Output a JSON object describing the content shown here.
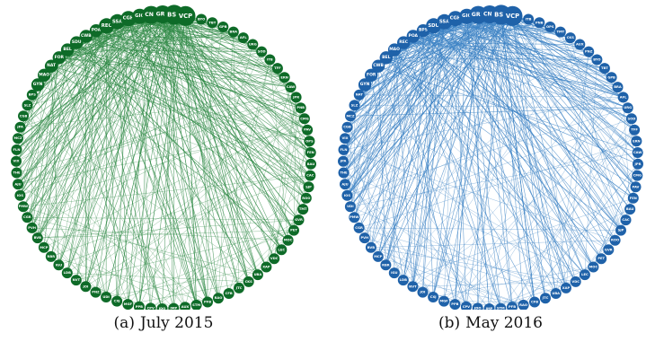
{
  "figure": {
    "panels": [
      {
        "id": "a",
        "tag": "(a)",
        "caption": "July 2015",
        "colors": {
          "node": "#0e6b28",
          "edge": "#2f8a45"
        },
        "labels": [
          "VCP",
          "BSB",
          "GRU",
          "CNF",
          "GIG",
          "CGH",
          "SSA",
          "REC",
          "POA",
          "CWB",
          "SDU",
          "BEL",
          "FOR",
          "NAT",
          "MAO",
          "GYN",
          "BPS",
          "SLZ",
          "CGB",
          "JPA",
          "MCZ",
          "FLN",
          "VIX",
          "THE",
          "AJU",
          "IOS",
          "PMW",
          "CGR",
          "PVH",
          "BVB",
          "MCP",
          "RBR",
          "IGU",
          "LDB",
          "NVT",
          "JOI",
          "PNZ",
          "UDI",
          "CXJ",
          "MGF",
          "PPB",
          "CPV",
          "JDO",
          "IMP",
          "AUX",
          "STM",
          "PFB",
          "RAO",
          "CFB",
          "JTC",
          "CKS",
          "UBA",
          "XAP",
          "VDC",
          "LEC",
          "MOC",
          "PET",
          "GVR",
          "TMT",
          "ROO",
          "SJP",
          "CAC",
          "BAU",
          "FEN",
          "OPS",
          "PAV",
          "CMG",
          "PNB",
          "JPR",
          "CAW",
          "ERN",
          "TFF",
          "ITB",
          "SOD",
          "URG",
          "AFL",
          "BRA",
          "GPB",
          "TBT",
          "BYO"
        ]
      },
      {
        "id": "b",
        "tag": "(b)",
        "caption": "May 2016",
        "colors": {
          "node": "#1f62a9",
          "edge": "#3b82c4"
        },
        "labels": [
          "VCP",
          "BSB",
          "CNF",
          "GRU",
          "GIG",
          "CGH",
          "SSA",
          "SDU",
          "BPS",
          "POA",
          "REC",
          "MAO",
          "BEL",
          "CWB",
          "FOR",
          "GYN",
          "NAT",
          "SLZ",
          "MCZ",
          "CGB",
          "VIX",
          "FLN",
          "JPA",
          "THE",
          "AJU",
          "IOS",
          "UDI",
          "PMW",
          "CGR",
          "PVH",
          "BVB",
          "MCP",
          "RBR",
          "IGU",
          "LDB",
          "NVT",
          "JOI",
          "CXJ",
          "MGF",
          "PPB",
          "CPV",
          "JDO",
          "IMP",
          "STM",
          "PFB",
          "RAO",
          "CFB",
          "JTC",
          "UBA",
          "XAP",
          "VDC",
          "LEC",
          "MOC",
          "PET",
          "GVR",
          "ROO",
          "SJP",
          "CAC",
          "BAU",
          "FEN",
          "PAV",
          "CMG",
          "JPR",
          "CAW",
          "ERN",
          "TFF",
          "SOD",
          "URG",
          "AFL",
          "BRA",
          "GPB",
          "TBT",
          "BYO",
          "PNZ",
          "AUX",
          "CKS",
          "TMT",
          "OPS",
          "PNB",
          "ITB"
        ]
      }
    ]
  }
}
